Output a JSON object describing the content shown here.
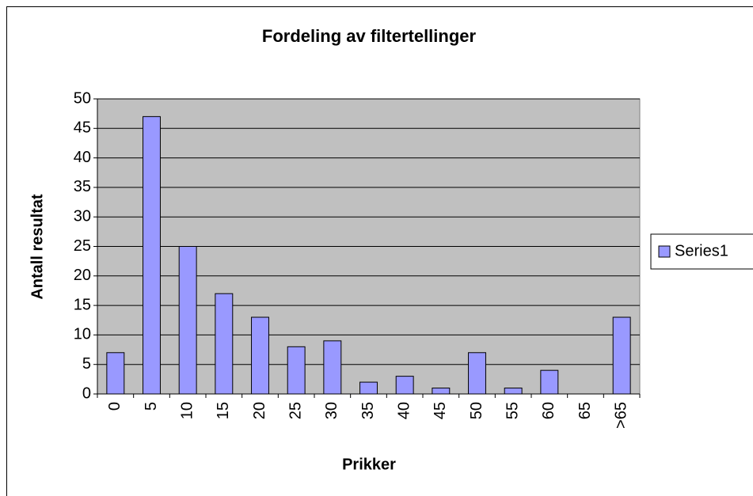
{
  "chart_data": {
    "type": "bar",
    "title": "Fordeling av filtertellinger",
    "x_label": "Prikker",
    "y_label": "Antall resultat",
    "categories": [
      "0",
      "5",
      "10",
      "15",
      "20",
      "25",
      "30",
      "35",
      "40",
      "45",
      "50",
      "55",
      "60",
      "65",
      ">65"
    ],
    "series": [
      {
        "name": "Series1",
        "color": "#9999ff",
        "values": [
          7,
          47,
          25,
          17,
          13,
          8,
          9,
          2,
          3,
          1,
          7,
          1,
          4,
          0,
          13
        ]
      }
    ],
    "ylim": [
      0,
      50
    ],
    "yticks": [
      0,
      5,
      10,
      15,
      20,
      25,
      30,
      35,
      40,
      45,
      50
    ],
    "grid": true,
    "legend": "right"
  }
}
